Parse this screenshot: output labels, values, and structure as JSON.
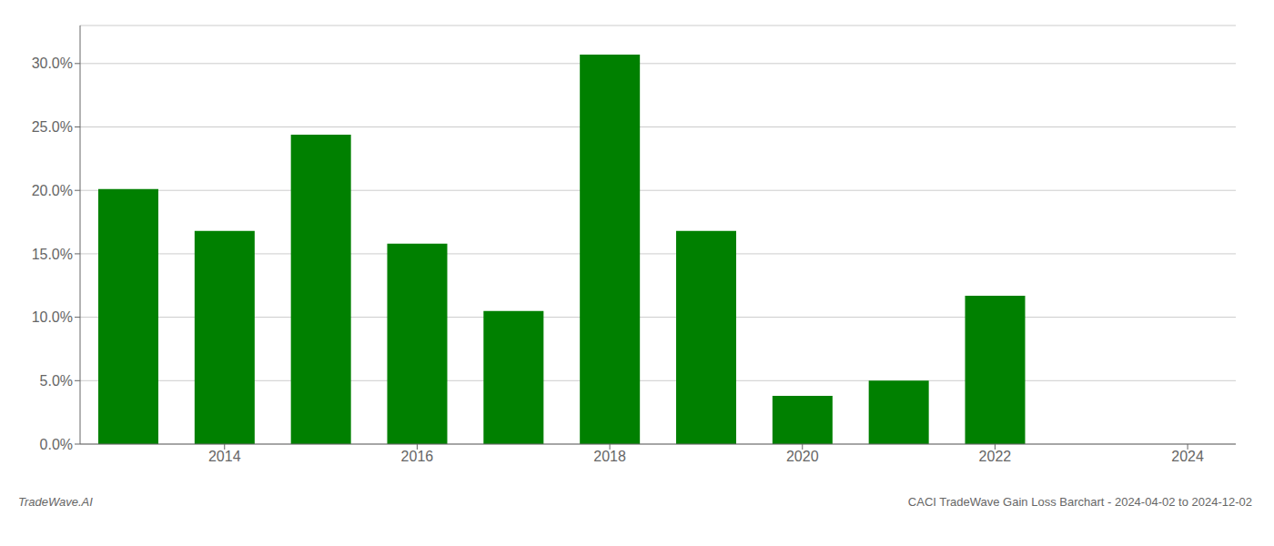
{
  "chart_data": {
    "type": "bar",
    "x": [
      2013,
      2014,
      2015,
      2016,
      2017,
      2018,
      2019,
      2020,
      2021,
      2022,
      2023
    ],
    "values": [
      0.201,
      0.168,
      0.244,
      0.158,
      0.105,
      0.307,
      0.168,
      0.038,
      0.05,
      0.117,
      0.0
    ],
    "color": "#008000",
    "xlim": [
      2012.5,
      2024.5
    ],
    "xticks": [
      2014,
      2016,
      2018,
      2020,
      2022,
      2024
    ],
    "ylim": [
      0,
      0.33
    ],
    "yticks": [
      {
        "value": 0.0,
        "label": "0.0%"
      },
      {
        "value": 0.05,
        "label": "5.0%"
      },
      {
        "value": 0.1,
        "label": "10.0%"
      },
      {
        "value": 0.15,
        "label": "15.0%"
      },
      {
        "value": 0.2,
        "label": "20.0%"
      },
      {
        "value": 0.25,
        "label": "25.0%"
      },
      {
        "value": 0.3,
        "label": "30.0%"
      }
    ],
    "grid": true,
    "annotations": [
      "TradeWave.AI",
      "CACI TradeWave Gain Loss Barchart - 2024-04-02 to 2024-12-02"
    ]
  }
}
